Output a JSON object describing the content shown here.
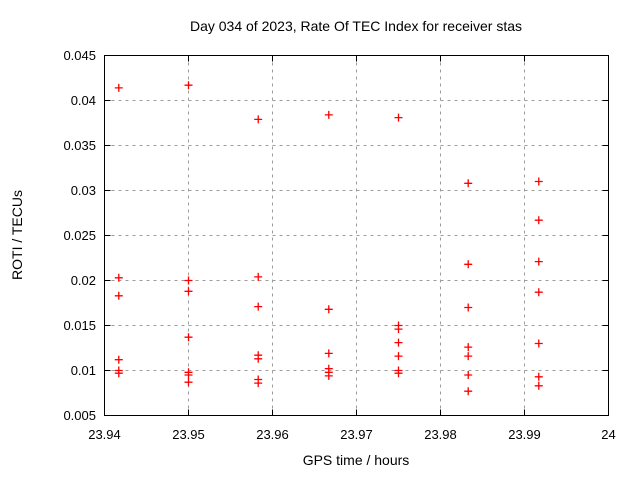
{
  "chart_data": {
    "type": "scatter",
    "title": "Day 034 of 2023, Rate Of TEC Index for receiver stas",
    "xlabel": "GPS time / hours",
    "ylabel": "ROTI / TECUs",
    "xlim": [
      23.94,
      24
    ],
    "ylim": [
      0.005,
      0.045
    ],
    "xticks": [
      23.94,
      23.95,
      23.96,
      23.97,
      23.98,
      23.99,
      24
    ],
    "xtick_labels": [
      "23.94",
      "23.95",
      "23.96",
      "23.97",
      "23.98",
      "23.99",
      "24"
    ],
    "yticks": [
      0.005,
      0.01,
      0.015,
      0.02,
      0.025,
      0.03,
      0.035,
      0.04,
      0.045
    ],
    "ytick_labels": [
      "0.005",
      "0.01",
      "0.015",
      "0.02",
      "0.025",
      "0.03",
      "0.035",
      "0.04",
      "0.045"
    ],
    "grid": true,
    "legend": false,
    "marker": "plus",
    "marker_color": "#ff0000",
    "grid_color": "#9c9c9c",
    "border_color": "#000000",
    "series": [
      {
        "name": "",
        "points": [
          [
            23.9417,
            0.0414
          ],
          [
            23.9417,
            0.0203
          ],
          [
            23.9417,
            0.0183
          ],
          [
            23.9417,
            0.0112
          ],
          [
            23.9417,
            0.01
          ],
          [
            23.9417,
            0.0097
          ],
          [
            23.95,
            0.0417
          ],
          [
            23.95,
            0.02
          ],
          [
            23.95,
            0.0188
          ],
          [
            23.95,
            0.0137
          ],
          [
            23.95,
            0.0098
          ],
          [
            23.95,
            0.0095
          ],
          [
            23.95,
            0.0087
          ],
          [
            23.9583,
            0.0379
          ],
          [
            23.9583,
            0.0204
          ],
          [
            23.9583,
            0.0171
          ],
          [
            23.9583,
            0.0117
          ],
          [
            23.9583,
            0.0113
          ],
          [
            23.9583,
            0.009
          ],
          [
            23.9583,
            0.0086
          ],
          [
            23.9667,
            0.0384
          ],
          [
            23.9667,
            0.0168
          ],
          [
            23.9667,
            0.0119
          ],
          [
            23.9667,
            0.0102
          ],
          [
            23.9667,
            0.0098
          ],
          [
            23.9667,
            0.0094
          ],
          [
            23.975,
            0.0381
          ],
          [
            23.975,
            0.015
          ],
          [
            23.975,
            0.0146
          ],
          [
            23.975,
            0.0131
          ],
          [
            23.975,
            0.0116
          ],
          [
            23.975,
            0.01
          ],
          [
            23.975,
            0.0097
          ],
          [
            23.9833,
            0.0308
          ],
          [
            23.9833,
            0.0218
          ],
          [
            23.9833,
            0.017
          ],
          [
            23.9833,
            0.0126
          ],
          [
            23.9833,
            0.0116
          ],
          [
            23.9833,
            0.0095
          ],
          [
            23.9833,
            0.0077
          ],
          [
            23.9917,
            0.031
          ],
          [
            23.9917,
            0.0267
          ],
          [
            23.9917,
            0.0221
          ],
          [
            23.9917,
            0.0187
          ],
          [
            23.9917,
            0.013
          ],
          [
            23.9917,
            0.0093
          ],
          [
            23.9917,
            0.0083
          ]
        ]
      }
    ]
  }
}
